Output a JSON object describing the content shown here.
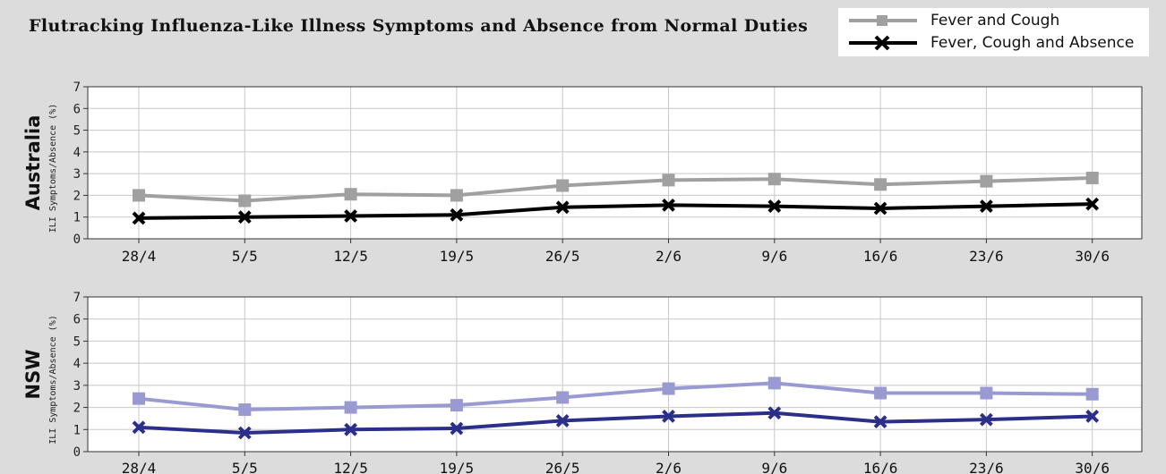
{
  "title": "Flutracking Influenza-Like Illness Symptoms and Absence from Normal Duties",
  "legend": {
    "items": [
      {
        "label": "Fever and Cough",
        "color": "#a0a0a0",
        "marker": "square"
      },
      {
        "label": "Fever, Cough and Absence",
        "color": "#000000",
        "marker": "x"
      }
    ]
  },
  "chart_data": [
    {
      "type": "line",
      "region_label": "Australia",
      "ylabel": "ILI Symptoms/Absence (%)",
      "categories": [
        "28/4",
        "5/5",
        "12/5",
        "19/5",
        "26/5",
        "2/6",
        "9/6",
        "16/6",
        "23/6",
        "30/6"
      ],
      "ylim": [
        0,
        7
      ],
      "yticks": [
        "0",
        "1",
        "2",
        "3",
        "4",
        "5",
        "6",
        "7"
      ],
      "grid": true,
      "legend_position": "top-right",
      "series": [
        {
          "name": "Fever and Cough",
          "color": "#a0a0a0",
          "marker": "square",
          "values": [
            2.0,
            1.75,
            2.05,
            2.0,
            2.45,
            2.7,
            2.75,
            2.5,
            2.65,
            2.8
          ]
        },
        {
          "name": "Fever, Cough and Absence",
          "color": "#000000",
          "marker": "x",
          "values": [
            0.95,
            1.0,
            1.05,
            1.1,
            1.45,
            1.55,
            1.5,
            1.4,
            1.5,
            1.6
          ]
        }
      ]
    },
    {
      "type": "line",
      "region_label": "NSW",
      "ylabel": "ILI Symptoms/Absence (%)",
      "categories": [
        "28/4",
        "5/5",
        "12/5",
        "19/5",
        "26/5",
        "2/6",
        "9/6",
        "16/6",
        "23/6",
        "30/6"
      ],
      "ylim": [
        0,
        7
      ],
      "yticks": [
        "0",
        "1",
        "2",
        "3",
        "4",
        "5",
        "6",
        "7"
      ],
      "grid": true,
      "series": [
        {
          "name": "Fever and Cough",
          "color": "#9a9ad2",
          "marker": "square",
          "values": [
            2.4,
            1.9,
            2.0,
            2.1,
            2.45,
            2.85,
            3.1,
            2.65,
            2.65,
            2.6
          ]
        },
        {
          "name": "Fever, Cough and Absence",
          "color": "#2b2f8a",
          "marker": "x",
          "values": [
            1.1,
            0.85,
            1.0,
            1.05,
            1.4,
            1.6,
            1.75,
            1.35,
            1.45,
            1.6
          ]
        }
      ]
    }
  ]
}
